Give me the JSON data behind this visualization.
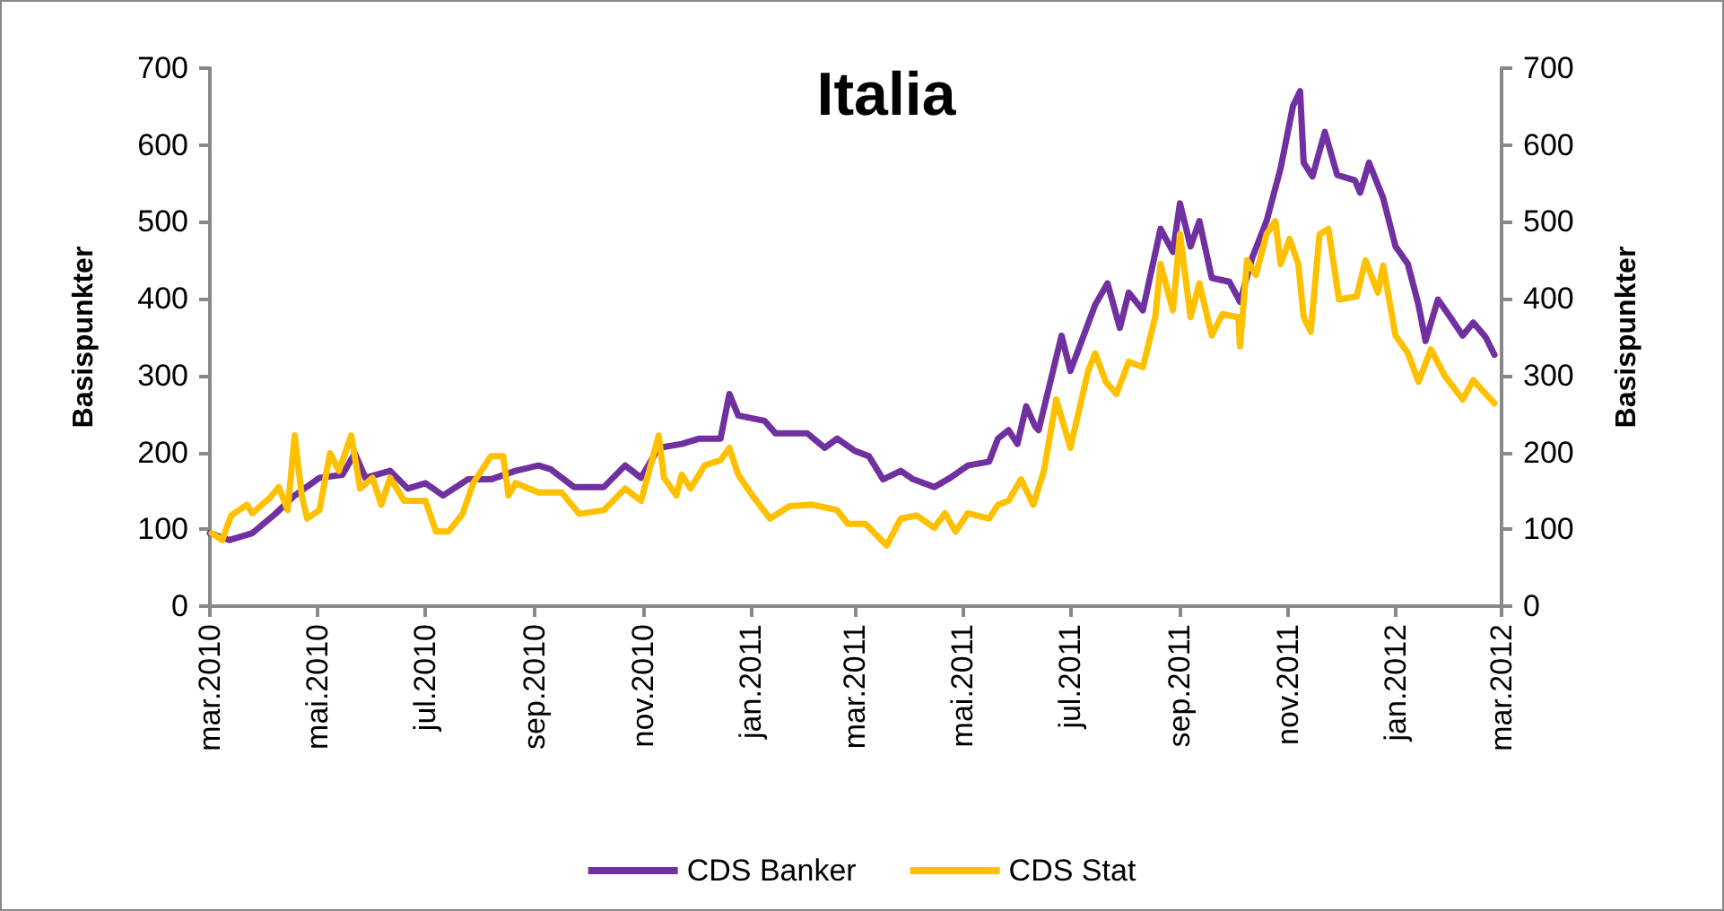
{
  "chart_data": {
    "type": "line",
    "title": "Italia",
    "ylabel": "Basispunkter",
    "y2label": "Basispunkter",
    "xlim": [
      "2010-03-01",
      "2012-03-01"
    ],
    "xticks": [
      {
        "value": "2010-03-01",
        "label": "mar.2010"
      },
      {
        "value": "2010-05-01",
        "label": "mai.2010"
      },
      {
        "value": "2010-07-01",
        "label": "jul.2010"
      },
      {
        "value": "2010-09-01",
        "label": "sep.2010"
      },
      {
        "value": "2010-11-01",
        "label": "nov.2010"
      },
      {
        "value": "2011-01-01",
        "label": "jan.2011"
      },
      {
        "value": "2011-03-01",
        "label": "mar.2011"
      },
      {
        "value": "2011-05-01",
        "label": "mai.2011"
      },
      {
        "value": "2011-07-01",
        "label": "jul.2011"
      },
      {
        "value": "2011-09-01",
        "label": "sep.2011"
      },
      {
        "value": "2011-11-01",
        "label": "nov.2011"
      },
      {
        "value": "2012-01-01",
        "label": "jan.2012"
      },
      {
        "value": "2012-03-01",
        "label": "mar.2012"
      }
    ],
    "ylim": [
      0,
      700
    ],
    "yticks": [
      0,
      100,
      200,
      300,
      400,
      500,
      600,
      700
    ],
    "y2lim": [
      0,
      700
    ],
    "y2ticks": [
      0,
      100,
      200,
      300,
      400,
      500,
      600,
      700
    ],
    "grid": false,
    "legend": "bottom",
    "marker": "none",
    "line_style": "solid",
    "series": [
      {
        "name": "CDS Banker",
        "color": "#7030a0",
        "x": [
          "2010-03-01",
          "2010-03-12",
          "2010-03-25",
          "2010-04-07",
          "2010-04-18",
          "2010-05-02",
          "2010-05-15",
          "2010-05-22",
          "2010-05-28",
          "2010-06-11",
          "2010-06-21",
          "2010-07-01",
          "2010-07-11",
          "2010-07-25",
          "2010-08-07",
          "2010-08-21",
          "2010-09-03",
          "2010-09-10",
          "2010-09-23",
          "2010-10-10",
          "2010-10-22",
          "2010-10-31",
          "2010-11-10",
          "2010-11-23",
          "2010-12-03",
          "2010-12-15",
          "2010-12-20",
          "2010-12-25",
          "2011-01-09",
          "2011-01-15",
          "2011-02-02",
          "2011-02-12",
          "2011-02-19",
          "2011-03-01",
          "2011-03-09",
          "2011-03-17",
          "2011-03-27",
          "2011-04-03",
          "2011-04-15",
          "2011-04-24",
          "2011-05-04",
          "2011-05-16",
          "2011-05-21",
          "2011-05-27",
          "2011-06-01",
          "2011-06-06",
          "2011-06-11",
          "2011-06-13",
          "2011-06-26",
          "2011-07-01",
          "2011-07-15",
          "2011-07-22",
          "2011-07-29",
          "2011-08-03",
          "2011-08-11",
          "2011-08-21",
          "2011-08-28",
          "2011-09-01",
          "2011-09-07",
          "2011-09-12",
          "2011-09-19",
          "2011-09-29",
          "2011-10-05",
          "2011-10-12",
          "2011-10-20",
          "2011-10-28",
          "2011-11-04",
          "2011-11-08",
          "2011-11-10",
          "2011-11-15",
          "2011-11-22",
          "2011-11-29",
          "2011-12-09",
          "2011-12-12",
          "2011-12-17",
          "2011-12-25",
          "2012-01-01",
          "2012-01-08",
          "2012-01-14",
          "2012-01-18",
          "2012-01-25",
          "2012-02-01",
          "2012-02-08",
          "2012-02-14",
          "2012-02-21",
          "2012-02-26"
        ],
        "values": [
          95,
          86,
          95,
          120,
          144,
          167,
          171,
          199,
          167,
          176,
          153,
          160,
          144,
          165,
          165,
          176,
          183,
          178,
          155,
          155,
          183,
          167,
          206,
          211,
          218,
          218,
          276,
          248,
          241,
          225,
          225,
          206,
          218,
          202,
          195,
          165,
          176,
          165,
          155,
          167,
          183,
          188,
          218,
          229,
          211,
          260,
          234,
          229,
          352,
          306,
          392,
          420,
          362,
          408,
          385,
          491,
          461,
          524,
          468,
          501,
          427,
          422,
          396,
          454,
          501,
          570,
          651,
          670,
          577,
          559,
          617,
          561,
          554,
          538,
          577,
          531,
          468,
          445,
          392,
          345,
          399,
          376,
          352,
          369,
          350,
          327
        ]
      },
      {
        "name": "CDS Stat",
        "color": "#ffc000",
        "x": [
          "2010-03-02",
          "2010-03-08",
          "2010-03-13",
          "2010-03-22",
          "2010-03-25",
          "2010-04-04",
          "2010-04-09",
          "2010-04-14",
          "2010-04-18",
          "2010-04-22",
          "2010-04-25",
          "2010-05-02",
          "2010-05-08",
          "2010-05-13",
          "2010-05-20",
          "2010-05-25",
          "2010-06-01",
          "2010-06-06",
          "2010-06-11",
          "2010-06-19",
          "2010-07-01",
          "2010-07-07",
          "2010-07-14",
          "2010-07-22",
          "2010-07-28",
          "2010-08-07",
          "2010-08-14",
          "2010-08-17",
          "2010-08-21",
          "2010-09-03",
          "2010-09-16",
          "2010-09-26",
          "2010-10-10",
          "2010-10-22",
          "2010-10-31",
          "2010-11-10",
          "2010-11-13",
          "2010-11-20",
          "2010-11-23",
          "2010-11-28",
          "2010-12-06",
          "2010-12-15",
          "2010-12-20",
          "2010-12-25",
          "2011-01-02",
          "2011-01-12",
          "2011-01-23",
          "2011-02-05",
          "2011-02-19",
          "2011-02-25",
          "2011-03-07",
          "2011-03-19",
          "2011-03-27",
          "2011-04-05",
          "2011-04-15",
          "2011-04-21",
          "2011-04-27",
          "2011-05-04",
          "2011-05-16",
          "2011-05-21",
          "2011-05-27",
          "2011-06-03",
          "2011-06-10",
          "2011-06-16",
          "2011-06-23",
          "2011-07-01",
          "2011-07-11",
          "2011-07-15",
          "2011-07-21",
          "2011-07-27",
          "2011-08-03",
          "2011-08-11",
          "2011-08-18",
          "2011-08-21",
          "2011-08-28",
          "2011-09-01",
          "2011-09-07",
          "2011-09-12",
          "2011-09-19",
          "2011-09-25",
          "2011-10-04",
          "2011-10-05",
          "2011-10-09",
          "2011-10-14",
          "2011-10-20",
          "2011-10-25",
          "2011-10-28",
          "2011-11-02",
          "2011-11-07",
          "2011-11-10",
          "2011-11-14",
          "2011-11-19",
          "2011-11-24",
          "2011-11-30",
          "2011-12-10",
          "2011-12-15",
          "2011-12-22",
          "2011-12-25",
          "2012-01-01",
          "2012-01-08",
          "2012-01-14",
          "2012-01-21",
          "2012-01-29",
          "2012-02-08",
          "2012-02-14",
          "2012-02-21",
          "2012-02-26"
        ],
        "values": [
          95,
          86,
          118,
          132,
          121,
          141,
          155,
          125,
          222,
          144,
          114,
          125,
          199,
          176,
          222,
          153,
          167,
          132,
          167,
          137,
          137,
          97,
          97,
          120,
          160,
          195,
          195,
          144,
          160,
          148,
          148,
          120,
          125,
          153,
          137,
          222,
          167,
          144,
          171,
          153,
          183,
          190,
          206,
          171,
          144,
          114,
          130,
          132,
          125,
          107,
          107,
          79,
          114,
          118,
          102,
          121,
          97,
          121,
          114,
          132,
          137,
          165,
          132,
          176,
          269,
          206,
          306,
          329,
          292,
          276,
          318,
          311,
          376,
          445,
          385,
          484,
          376,
          420,
          352,
          380,
          376,
          338,
          450,
          431,
          484,
          501,
          445,
          478,
          445,
          376,
          357,
          484,
          491,
          399,
          403,
          450,
          408,
          443,
          352,
          329,
          292,
          334,
          299,
          269,
          294,
          276,
          264
        ]
      }
    ]
  }
}
